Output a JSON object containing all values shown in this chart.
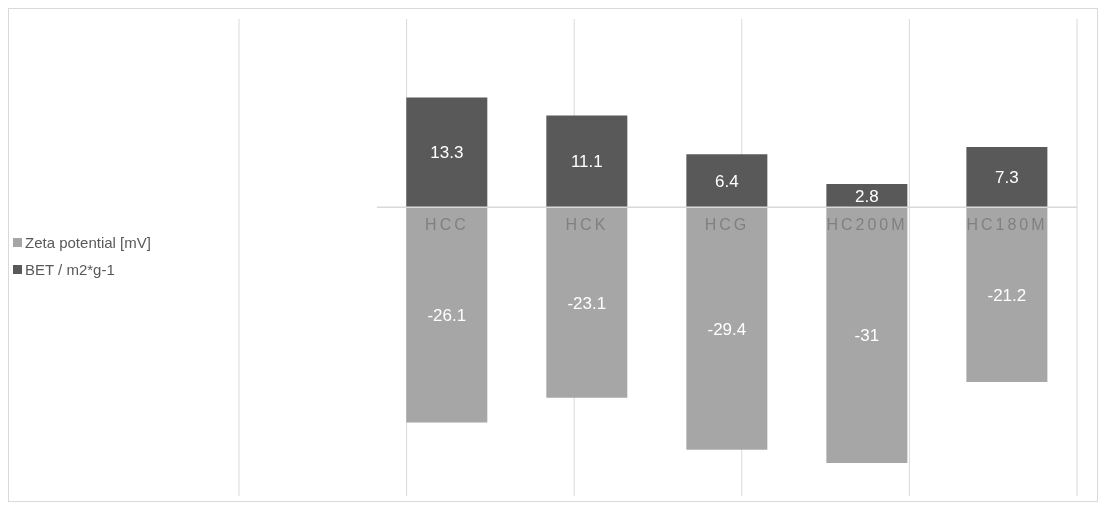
{
  "chart_data": {
    "type": "bar",
    "categories": [
      "HCC",
      "HCK",
      "HCG",
      "HC200M",
      "HC180M"
    ],
    "stacked": true,
    "data_labels": true,
    "grid": "x",
    "legend": "left",
    "series": [
      {
        "name": "Zeta potential [mV]",
        "color": "#a6a6a6",
        "values": [
          -26.1,
          -23.1,
          -29.4,
          -31,
          -21.2
        ]
      },
      {
        "name": "BET / m2*g-1",
        "color": "#595959",
        "values": [
          13.3,
          11.1,
          6.4,
          2.8,
          7.3
        ]
      }
    ]
  }
}
